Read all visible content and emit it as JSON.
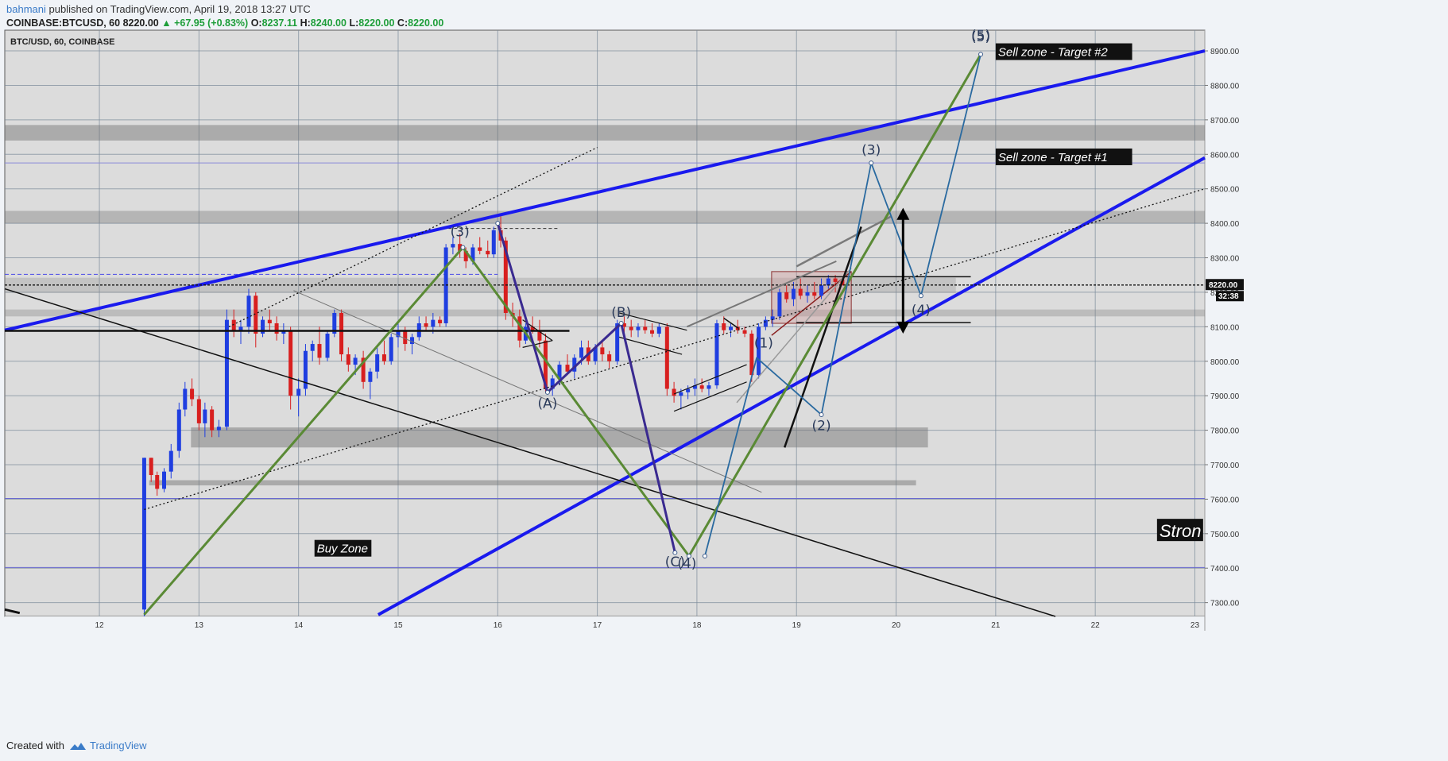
{
  "header": {
    "user": "bahmani",
    "published": " published on TradingView.com, April 19, 2018 13:27 UTC",
    "symbol": "COINBASE:BTCUSD, 60",
    "last": "8220.00",
    "change": "▲ +67.95 (+0.83%)",
    "o_label": "O:",
    "o": "8237.11",
    "h_label": "H:",
    "h": "8240.00",
    "l_label": "L:",
    "l": "8220.00",
    "c_label": "C:",
    "c": "8220.00"
  },
  "footer": {
    "created": "Created with",
    "brand": "TradingView"
  },
  "chart_data": {
    "type": "candlestick",
    "title": "BTC/USD, 60, COINBASE",
    "ylim": [
      7260,
      8960
    ],
    "xlim": [
      11.05,
      23.1
    ],
    "price_ticks": [
      7300,
      7400,
      7500,
      7600,
      7700,
      7800,
      7900,
      8000,
      8100,
      8200,
      8300,
      8400,
      8500,
      8600,
      8700,
      8800,
      8900
    ],
    "date_ticks": [
      12,
      13,
      14,
      15,
      16,
      17,
      18,
      19,
      20,
      21,
      22,
      23
    ],
    "last_price": "8220.00",
    "countdown": "32:38",
    "colors": {
      "up": "#1f3ee0",
      "down": "#d81f1f",
      "trend": "#1a1aee",
      "wave": "#5a8a35",
      "abc": "#3a2a90",
      "alt": "#2a6aa0"
    },
    "candles": [
      [
        12.45,
        7280,
        7720,
        7260,
        7720
      ],
      [
        12.52,
        7720,
        7720,
        7650,
        7670
      ],
      [
        12.58,
        7670,
        7680,
        7610,
        7630
      ],
      [
        12.65,
        7630,
        7690,
        7620,
        7680
      ],
      [
        12.72,
        7680,
        7760,
        7660,
        7740
      ],
      [
        12.8,
        7740,
        7880,
        7720,
        7860
      ],
      [
        12.86,
        7860,
        7940,
        7840,
        7920
      ],
      [
        12.93,
        7920,
        7950,
        7870,
        7890
      ],
      [
        13.0,
        7890,
        7900,
        7800,
        7820
      ],
      [
        13.06,
        7820,
        7880,
        7780,
        7860
      ],
      [
        13.13,
        7860,
        7870,
        7780,
        7800
      ],
      [
        13.2,
        7800,
        7830,
        7780,
        7810
      ],
      [
        13.28,
        7810,
        8150,
        7800,
        8120
      ],
      [
        13.35,
        8120,
        8150,
        8070,
        8090
      ],
      [
        13.42,
        8090,
        8120,
        8050,
        8100
      ],
      [
        13.5,
        8100,
        8210,
        8080,
        8190
      ],
      [
        13.57,
        8190,
        8200,
        8040,
        8080
      ],
      [
        13.64,
        8080,
        8130,
        8070,
        8120
      ],
      [
        13.71,
        8120,
        8150,
        8090,
        8110
      ],
      [
        13.78,
        8110,
        8130,
        8060,
        8080
      ],
      [
        13.85,
        8080,
        8110,
        8050,
        8090
      ],
      [
        13.92,
        8090,
        8100,
        7860,
        7900
      ],
      [
        14.0,
        7900,
        7950,
        7840,
        7920
      ],
      [
        14.07,
        7920,
        8050,
        7900,
        8030
      ],
      [
        14.14,
        8030,
        8060,
        8000,
        8050
      ],
      [
        14.21,
        8050,
        8100,
        7990,
        8010
      ],
      [
        14.29,
        8010,
        8090,
        8000,
        8080
      ],
      [
        14.36,
        8080,
        8150,
        8070,
        8140
      ],
      [
        14.43,
        8140,
        8150,
        8000,
        8020
      ],
      [
        14.5,
        8020,
        8040,
        7970,
        7990
      ],
      [
        14.57,
        7990,
        8020,
        7960,
        8010
      ],
      [
        14.65,
        8010,
        8030,
        7920,
        7940
      ],
      [
        14.72,
        7940,
        7980,
        7890,
        7970
      ],
      [
        14.79,
        7970,
        8040,
        7950,
        8020
      ],
      [
        14.86,
        8020,
        8060,
        7990,
        8000
      ],
      [
        14.93,
        8000,
        8080,
        7990,
        8070
      ],
      [
        15.0,
        8070,
        8110,
        8040,
        8090
      ],
      [
        15.07,
        8090,
        8100,
        8030,
        8050
      ],
      [
        15.14,
        8050,
        8080,
        8020,
        8070
      ],
      [
        15.21,
        8070,
        8130,
        8060,
        8110
      ],
      [
        15.28,
        8110,
        8130,
        8090,
        8100
      ],
      [
        15.35,
        8100,
        8140,
        8080,
        8120
      ],
      [
        15.42,
        8120,
        8130,
        8100,
        8110
      ],
      [
        15.48,
        8110,
        8340,
        8100,
        8330
      ],
      [
        15.55,
        8330,
        8360,
        8310,
        8340
      ],
      [
        15.62,
        8340,
        8370,
        8300,
        8320
      ],
      [
        15.68,
        8320,
        8330,
        8270,
        8290
      ],
      [
        15.75,
        8290,
        8340,
        8280,
        8330
      ],
      [
        15.82,
        8330,
        8360,
        8310,
        8320
      ],
      [
        15.9,
        8320,
        8350,
        8300,
        8310
      ],
      [
        15.96,
        8310,
        8390,
        8300,
        8380
      ],
      [
        16.03,
        8380,
        8420,
        8330,
        8350
      ],
      [
        16.08,
        8350,
        8360,
        8120,
        8140
      ],
      [
        16.15,
        8140,
        8170,
        8100,
        8130
      ],
      [
        16.22,
        8130,
        8150,
        8040,
        8060
      ],
      [
        16.28,
        8060,
        8110,
        8050,
        8100
      ],
      [
        16.35,
        8100,
        8130,
        8080,
        8090
      ],
      [
        16.42,
        8090,
        8120,
        8040,
        8060
      ],
      [
        16.48,
        8060,
        8080,
        7910,
        7920
      ],
      [
        16.55,
        7920,
        7960,
        7900,
        7950
      ],
      [
        16.62,
        7950,
        8000,
        7930,
        7990
      ],
      [
        16.7,
        7990,
        8020,
        7960,
        7970
      ],
      [
        16.77,
        7970,
        8020,
        7950,
        8010
      ],
      [
        16.84,
        8010,
        8060,
        7990,
        8040
      ],
      [
        16.91,
        8040,
        8060,
        7990,
        8000
      ],
      [
        16.98,
        8000,
        8050,
        7990,
        8040
      ],
      [
        17.05,
        8040,
        8060,
        8000,
        8020
      ],
      [
        17.12,
        8020,
        8030,
        7980,
        8000
      ],
      [
        17.2,
        8000,
        8120,
        7990,
        8110
      ],
      [
        17.27,
        8110,
        8130,
        8080,
        8100
      ],
      [
        17.34,
        8100,
        8120,
        8070,
        8090
      ],
      [
        17.41,
        8090,
        8110,
        8070,
        8100
      ],
      [
        17.48,
        8100,
        8120,
        8080,
        8090
      ],
      [
        17.55,
        8090,
        8110,
        8070,
        8080
      ],
      [
        17.62,
        8080,
        8110,
        8070,
        8100
      ],
      [
        17.7,
        8100,
        8110,
        7900,
        7920
      ],
      [
        17.77,
        7920,
        7940,
        7880,
        7900
      ],
      [
        17.84,
        7900,
        7920,
        7860,
        7910
      ],
      [
        17.91,
        7910,
        7930,
        7890,
        7920
      ],
      [
        17.98,
        7920,
        7950,
        7900,
        7930
      ],
      [
        18.05,
        7930,
        7950,
        7910,
        7920
      ],
      [
        18.12,
        7920,
        7940,
        7900,
        7930
      ],
      [
        18.2,
        7930,
        8120,
        7920,
        8110
      ],
      [
        18.27,
        8110,
        8130,
        8080,
        8090
      ],
      [
        18.34,
        8090,
        8110,
        8070,
        8100
      ],
      [
        18.41,
        8100,
        8120,
        8080,
        8090
      ],
      [
        18.48,
        8090,
        8100,
        8070,
        8080
      ],
      [
        18.55,
        8080,
        8090,
        7940,
        7960
      ],
      [
        18.62,
        7960,
        8110,
        7950,
        8100
      ],
      [
        18.69,
        8100,
        8130,
        8090,
        8120
      ],
      [
        18.76,
        8120,
        8150,
        8100,
        8130
      ],
      [
        18.83,
        8130,
        8210,
        8120,
        8200
      ],
      [
        18.9,
        8200,
        8220,
        8170,
        8180
      ],
      [
        18.97,
        8180,
        8230,
        8160,
        8210
      ],
      [
        19.04,
        8210,
        8240,
        8180,
        8190
      ],
      [
        19.11,
        8190,
        8220,
        8170,
        8200
      ],
      [
        19.18,
        8200,
        8230,
        8180,
        8190
      ],
      [
        19.25,
        8190,
        8240,
        8180,
        8220
      ],
      [
        19.32,
        8220,
        8250,
        8210,
        8240
      ],
      [
        19.39,
        8240,
        8250,
        8200,
        8230
      ],
      [
        19.46,
        8237,
        8240,
        8220,
        8220
      ]
    ],
    "labels": [
      {
        "text": "(3)",
        "x": 15.62,
        "y": 8362
      },
      {
        "text": "(A)",
        "x": 16.5,
        "y": 7865
      },
      {
        "text": "(B)",
        "x": 17.24,
        "y": 8128
      },
      {
        "text": "(C)",
        "x": 17.78,
        "y": 7405
      },
      {
        "text": "(4)",
        "x": 17.9,
        "y": 7400
      },
      {
        "text": "(1)",
        "x": 18.67,
        "y": 8040
      },
      {
        "text": "(2)",
        "x": 19.25,
        "y": 7800
      },
      {
        "text": "(3)",
        "x": 19.75,
        "y": 8600
      },
      {
        "text": "(4)",
        "x": 20.25,
        "y": 8135
      },
      {
        "text": "(5)",
        "x": 20.85,
        "y": 8928
      },
      {
        "text": "(5)",
        "x": 20.85,
        "y": 8932
      }
    ],
    "annotations": [
      {
        "text": "Sell zone - Target #2",
        "x": 21.0,
        "y": 8885
      },
      {
        "text": "Sell zone - Target #1",
        "x": 21.0,
        "y": 8580
      },
      {
        "text": "Buy Zone",
        "x": 14.16,
        "y": 7445
      },
      {
        "text": "Stron",
        "x": 22.62,
        "y": 7490
      }
    ]
  }
}
